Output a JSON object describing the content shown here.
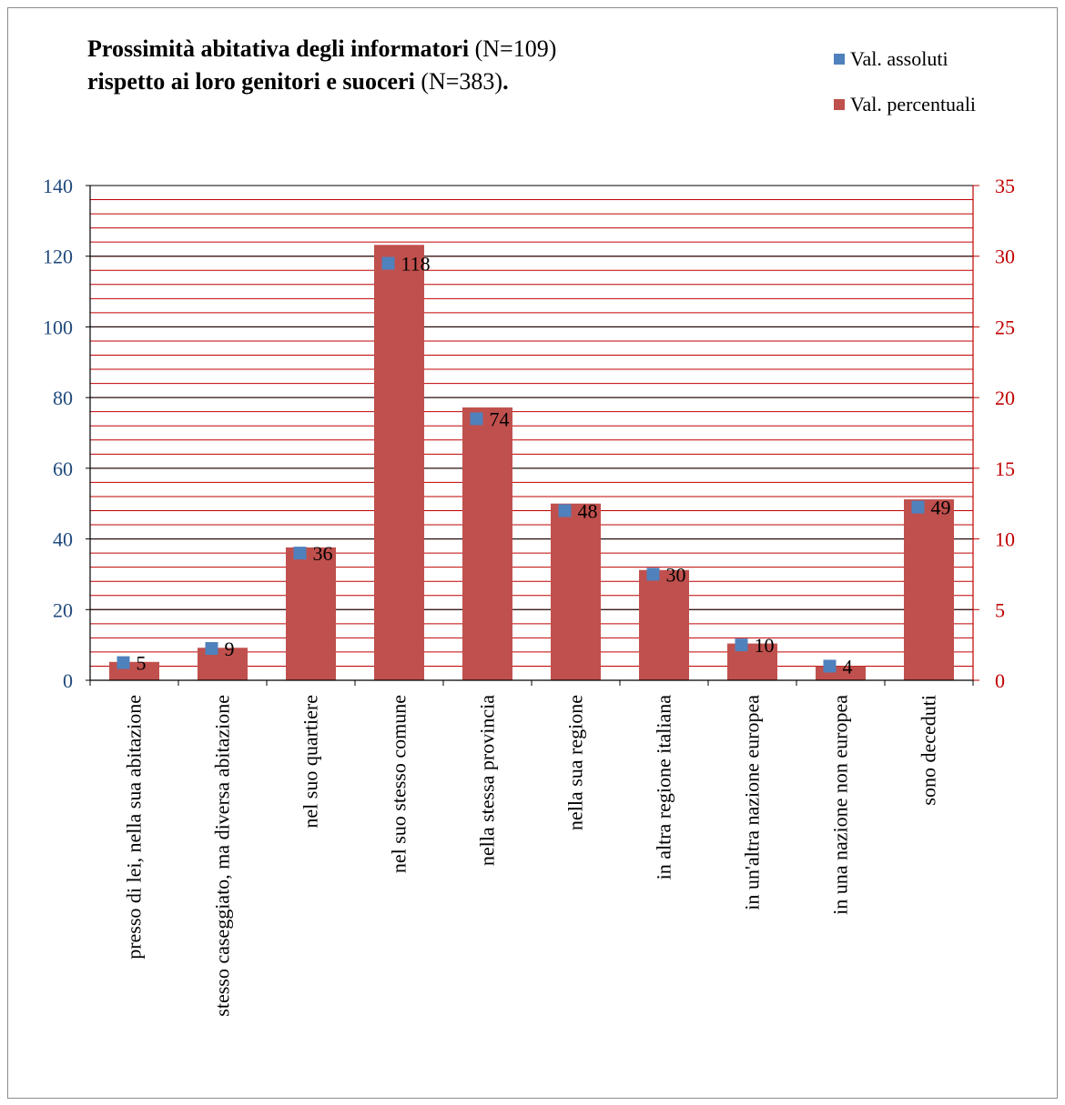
{
  "title": {
    "line1_bold": "Prossimità abitativa degli informatori",
    "line1_rest": " (N=109)",
    "line2_bold": "rispetto ai loro genitori e suoceri",
    "line2_rest": " (N=383)",
    "line2_end": "."
  },
  "legend": {
    "items": [
      {
        "label": "Val. assoluti",
        "color": "#4f81bd"
      },
      {
        "label": "Val. percentuali",
        "color": "#c0504d"
      }
    ]
  },
  "chart_data": {
    "type": "bar",
    "categories": [
      "presso di lei, nella sua abitazione",
      "stesso caseggiato, ma diversa abitazione",
      "nel suo quartiere",
      "nel suo stesso comune",
      "nella stessa provincia",
      "nella sua regione",
      "in altra regione italiana",
      "in un'altra nazione europea",
      "in una nazione non europea",
      "sono deceduti"
    ],
    "series": [
      {
        "name": "Val. percentuali",
        "type": "bar",
        "axis": "right",
        "color": "#c0504d",
        "values": [
          1.3,
          2.3,
          9.4,
          30.8,
          19.3,
          12.5,
          7.8,
          2.6,
          1.0,
          12.8
        ]
      },
      {
        "name": "Val. assoluti",
        "type": "marker",
        "axis": "left",
        "color": "#4f81bd",
        "values": [
          5,
          9,
          36,
          118,
          74,
          48,
          30,
          10,
          4,
          49
        ],
        "labels": [
          "5",
          "9",
          "36",
          "118",
          "74",
          "48",
          "30",
          "10",
          "4",
          "49"
        ]
      }
    ],
    "y_left": {
      "min": 0,
      "max": 140,
      "step": 20,
      "ticks": [
        "0",
        "20",
        "40",
        "60",
        "80",
        "100",
        "120",
        "140"
      ],
      "color": "#1f497d"
    },
    "y_right": {
      "min": 0,
      "max": 35,
      "step": 5,
      "ticks": [
        "0",
        "5",
        "10",
        "15",
        "20",
        "25",
        "30",
        "35"
      ],
      "color": "#c00000"
    },
    "grid": true,
    "legend_position": "top-right"
  }
}
